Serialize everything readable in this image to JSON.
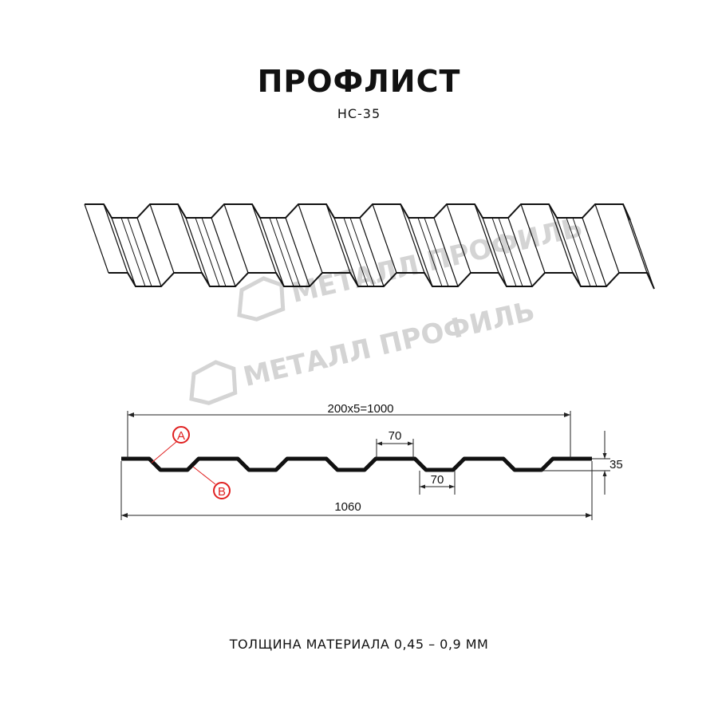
{
  "title": "ПРОФЛИСТ",
  "subtitle": "НС-35",
  "watermark": "МЕТАЛЛ ПРОФИЛЬ",
  "dimensions": {
    "pitch_total": "200x5=1000",
    "top_width": "70",
    "bottom_width": "70",
    "height": "35",
    "full_width": "1060"
  },
  "callouts": {
    "a": "A",
    "b": "B"
  },
  "footer": "ТОЛЩИНА МАТЕРИАЛА 0,45 – 0,9 ММ",
  "colors": {
    "line": "#111111",
    "callout": "#e02020",
    "watermark": "#d4d4d4"
  }
}
